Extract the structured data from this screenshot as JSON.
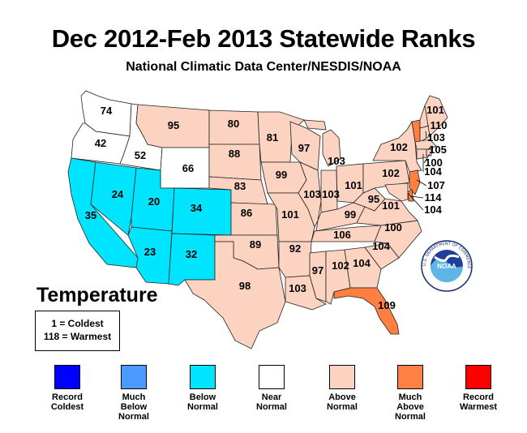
{
  "header": {
    "title": "Dec 2012-Feb 2013 Statewide Ranks",
    "subtitle": "National Climatic Data Center/NESDIS/NOAA"
  },
  "variable": "Temperature",
  "scale_key": {
    "coldest": "1 = Coldest",
    "warmest": "118 = Warmest"
  },
  "category_colors": {
    "record_coldest": "#0000FF",
    "much_below": "#4C99FF",
    "below": "#00E5FF",
    "near": "#FFFFFF",
    "above": "#FBD3C0",
    "much_above": "#FF8040",
    "record_warmest": "#FF0000"
  },
  "legend": [
    {
      "key": "record_coldest",
      "label": "Record\nColdest",
      "color": "#0000FF"
    },
    {
      "key": "much_below",
      "label": "Much\nBelow\nNormal",
      "color": "#4C99FF"
    },
    {
      "key": "below",
      "label": "Below\nNormal",
      "color": "#00E5FF"
    },
    {
      "key": "near",
      "label": "Near\nNormal",
      "color": "#FFFFFF"
    },
    {
      "key": "above",
      "label": "Above\nNormal",
      "color": "#FBD3C0"
    },
    {
      "key": "much_above",
      "label": "Much\nAbove\nNormal",
      "color": "#FF8040"
    },
    {
      "key": "record_warmest",
      "label": "Record\nWarmest",
      "color": "#FF0000"
    }
  ],
  "states": [
    {
      "id": "WA",
      "rank": "74",
      "category": "near"
    },
    {
      "id": "OR",
      "rank": "42",
      "category": "near"
    },
    {
      "id": "ID",
      "rank": "52",
      "category": "near"
    },
    {
      "id": "MT",
      "rank": "95",
      "category": "above"
    },
    {
      "id": "WY",
      "rank": "66",
      "category": "near"
    },
    {
      "id": "CA",
      "rank": "35",
      "category": "below"
    },
    {
      "id": "NV",
      "rank": "24",
      "category": "below"
    },
    {
      "id": "UT",
      "rank": "20",
      "category": "below"
    },
    {
      "id": "CO",
      "rank": "34",
      "category": "below"
    },
    {
      "id": "AZ",
      "rank": "23",
      "category": "below"
    },
    {
      "id": "NM",
      "rank": "32",
      "category": "below"
    },
    {
      "id": "ND",
      "rank": "80",
      "category": "above"
    },
    {
      "id": "SD",
      "rank": "88",
      "category": "above"
    },
    {
      "id": "NE",
      "rank": "83",
      "category": "above"
    },
    {
      "id": "KS",
      "rank": "86",
      "category": "above"
    },
    {
      "id": "OK",
      "rank": "89",
      "category": "above"
    },
    {
      "id": "TX",
      "rank": "98",
      "category": "above"
    },
    {
      "id": "MN",
      "rank": "81",
      "category": "above"
    },
    {
      "id": "IA",
      "rank": "99",
      "category": "above"
    },
    {
      "id": "MO",
      "rank": "101",
      "category": "above"
    },
    {
      "id": "AR",
      "rank": "92",
      "category": "above"
    },
    {
      "id": "LA",
      "rank": "103",
      "category": "above"
    },
    {
      "id": "WI",
      "rank": "97",
      "category": "above"
    },
    {
      "id": "IL",
      "rank": "103",
      "category": "above"
    },
    {
      "id": "MI",
      "rank": "103",
      "category": "above"
    },
    {
      "id": "IN",
      "rank": "103",
      "category": "above"
    },
    {
      "id": "OH",
      "rank": "101",
      "category": "above"
    },
    {
      "id": "KY",
      "rank": "99",
      "category": "above"
    },
    {
      "id": "TN",
      "rank": "106",
      "category": "above"
    },
    {
      "id": "MS",
      "rank": "97",
      "category": "above"
    },
    {
      "id": "AL",
      "rank": "102",
      "category": "above"
    },
    {
      "id": "GA",
      "rank": "104",
      "category": "above"
    },
    {
      "id": "FL",
      "rank": "109",
      "category": "much_above"
    },
    {
      "id": "SC",
      "rank": "104",
      "category": "above"
    },
    {
      "id": "NC",
      "rank": "100",
      "category": "above"
    },
    {
      "id": "VA",
      "rank": "101",
      "category": "above"
    },
    {
      "id": "WV",
      "rank": "95",
      "category": "above"
    },
    {
      "id": "PA",
      "rank": "102",
      "category": "above"
    },
    {
      "id": "NY",
      "rank": "102",
      "category": "above"
    },
    {
      "id": "VT",
      "rank": "110",
      "category": "much_above"
    },
    {
      "id": "ME",
      "rank": "101",
      "category": "above"
    },
    {
      "id": "NH",
      "rank": "103",
      "category": "above"
    },
    {
      "id": "MA",
      "rank": "105",
      "category": "above"
    },
    {
      "id": "RI",
      "rank": "100",
      "category": "above"
    },
    {
      "id": "CT",
      "rank": "104",
      "category": "above"
    },
    {
      "id": "NJ",
      "rank": "107",
      "category": "much_above"
    },
    {
      "id": "DE",
      "rank": "114",
      "category": "much_above"
    },
    {
      "id": "MD",
      "rank": "104",
      "category": "above"
    }
  ],
  "logo": {
    "text": "NOAA",
    "ring_text": "U.S. DEPARTMENT OF COMMERCE"
  }
}
